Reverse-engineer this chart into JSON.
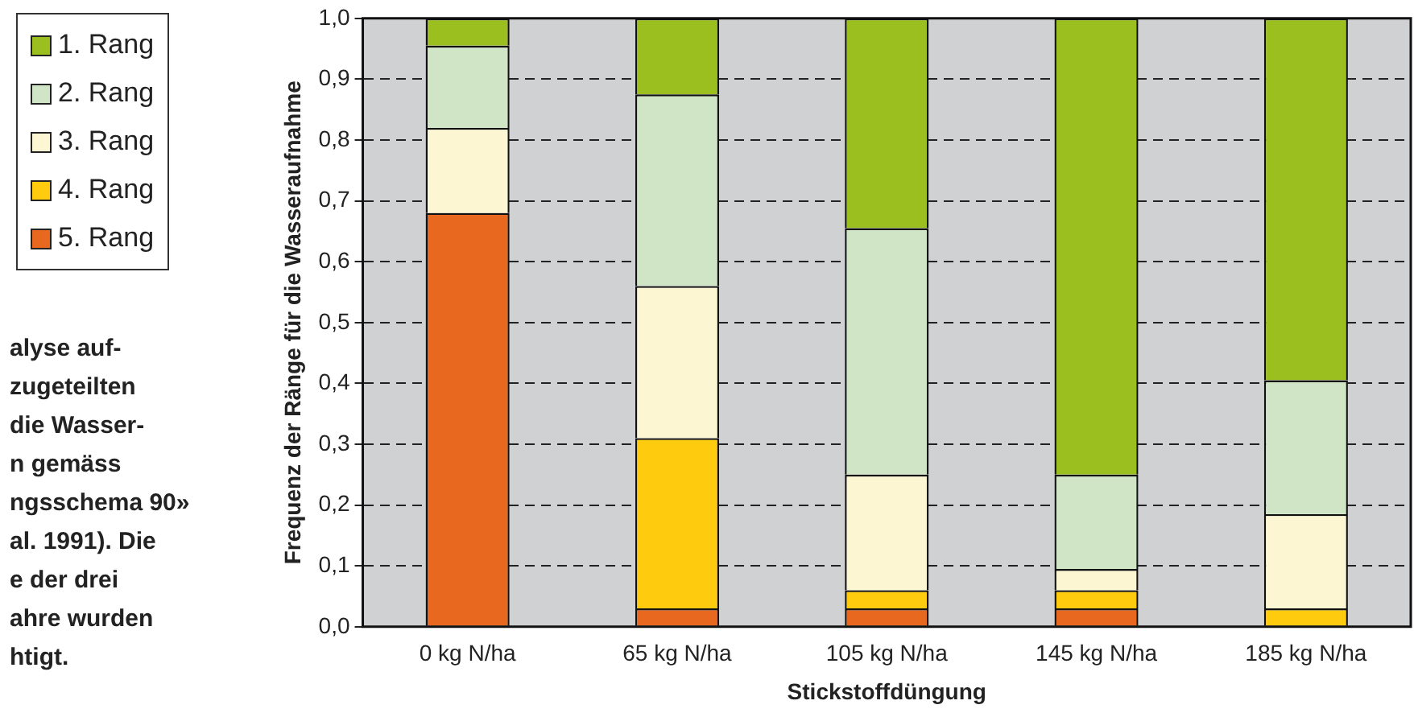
{
  "chart_data": {
    "type": "bar",
    "stacked": true,
    "xlabel": "Stickstoffdüngung",
    "ylabel": "Frequenz der Ränge für die Wasseraufnahme",
    "categories": [
      "0 kg N/ha",
      "65 kg N/ha",
      "105 kg N/ha",
      "145 kg N/ha",
      "185 kg N/ha"
    ],
    "series": [
      {
        "name": "5. Rang",
        "color": "#e86820",
        "values": [
          0.68,
          0.03,
          0.03,
          0.03,
          0
        ]
      },
      {
        "name": "4. Rang",
        "color": "#fecb0f",
        "values": [
          0,
          0.28,
          0.03,
          0.03,
          0.03
        ]
      },
      {
        "name": "3. Rang",
        "color": "#fcf7d2",
        "values": [
          0.14,
          0.25,
          0.19,
          0.035,
          0.155
        ]
      },
      {
        "name": "2. Rang",
        "color": "#d0e4c6",
        "values": [
          0.135,
          0.315,
          0.405,
          0.155,
          0.22
        ]
      },
      {
        "name": "1. Rang",
        "color": "#9bbf1e",
        "values": [
          0.045,
          0.125,
          0.345,
          0.75,
          0.595
        ]
      }
    ],
    "ylim": [
      0,
      1
    ],
    "yticks": [
      {
        "value": 0,
        "label": "0,0"
      },
      {
        "value": 0.1,
        "label": "0,1"
      },
      {
        "value": 0.2,
        "label": "0,2"
      },
      {
        "value": 0.3,
        "label": "0,3"
      },
      {
        "value": 0.4,
        "label": "0,4"
      },
      {
        "value": 0.5,
        "label": "0,5"
      },
      {
        "value": 0.6,
        "label": "0,6"
      },
      {
        "value": 0.7,
        "label": "0,7"
      },
      {
        "value": 0.8,
        "label": "0,8"
      },
      {
        "value": 0.9,
        "label": "0,9"
      },
      {
        "value": 1,
        "label": "1,0"
      }
    ],
    "grid": "y",
    "legend": "left",
    "annotations": [
      "alyse auf-\nzugeteilten\ndie Wasser-\nn gemäss\nngsschema 90»\nal. 1991). Die\ne der drei\nahre wurden\nhtigt."
    ]
  }
}
